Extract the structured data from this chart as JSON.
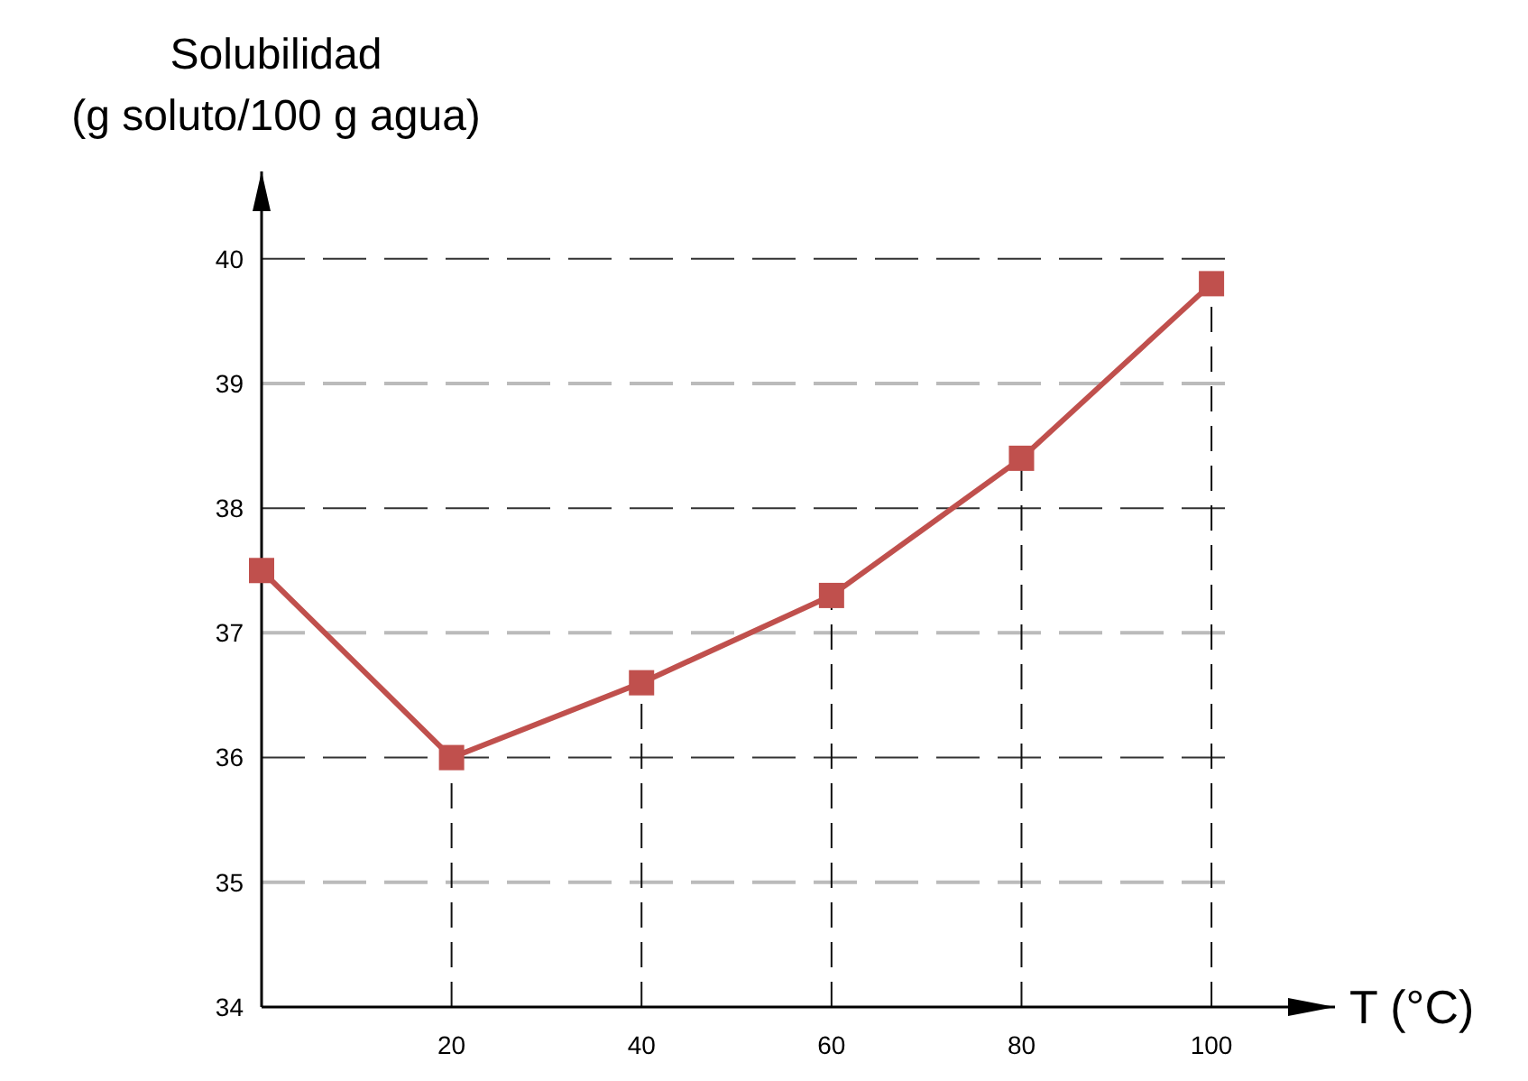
{
  "chart_data": {
    "type": "line",
    "ylabel": "Solubilidad\n(g soluto/100 g agua)",
    "xlabel": "T (°C)",
    "x": [
      0,
      20,
      40,
      60,
      80,
      100
    ],
    "series": [
      {
        "color": "#c0504d",
        "values": [
          37.5,
          36.0,
          36.6,
          37.3,
          38.4,
          39.8
        ],
        "errors": [
          null,
          [
            34,
            36.0
          ],
          [
            34,
            36.6
          ],
          [
            34,
            37.3
          ],
          [
            34,
            38.4
          ],
          [
            34,
            39.8
          ]
        ]
      }
    ],
    "xlim": [
      0,
      113
    ],
    "ylim": [
      34,
      40.7
    ],
    "xticks": [
      20,
      40,
      60,
      80,
      100
    ],
    "yticks": [
      34,
      35,
      36,
      37,
      38,
      39,
      40
    ],
    "grid": "y",
    "marker": "square",
    "line_style": "solid"
  }
}
